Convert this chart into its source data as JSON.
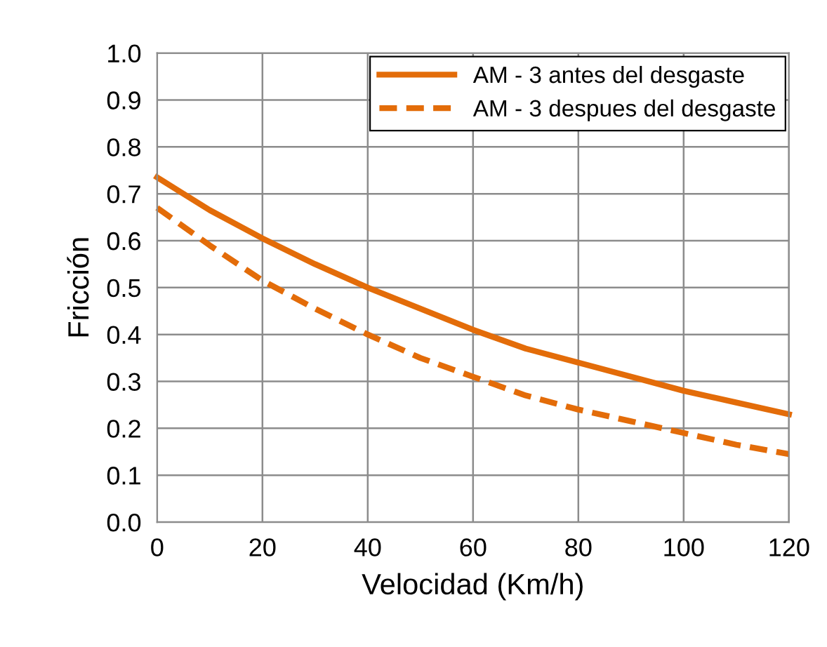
{
  "chart_data": {
    "type": "line",
    "xlabel": "Velocidad (Km/h)",
    "ylabel": "Fricción",
    "x": [
      0,
      10,
      20,
      30,
      40,
      50,
      60,
      70,
      80,
      90,
      100,
      110,
      120
    ],
    "series": [
      {
        "name": "AM - 3 antes del desgaste",
        "color": "#e36c09",
        "line_style": "solid",
        "values": [
          0.735,
          0.665,
          0.605,
          0.55,
          0.5,
          0.455,
          0.41,
          0.37,
          0.34,
          0.31,
          0.28,
          0.255,
          0.23
        ]
      },
      {
        "name": "AM - 3 despues del desgaste",
        "color": "#e36c09",
        "line_style": "dashed",
        "values": [
          0.67,
          0.59,
          0.515,
          0.455,
          0.4,
          0.35,
          0.31,
          0.27,
          0.24,
          0.215,
          0.19,
          0.165,
          0.145
        ]
      }
    ],
    "xlim": [
      0,
      120
    ],
    "xticks": [
      0,
      20,
      40,
      60,
      80,
      100,
      120
    ],
    "ylim": [
      0,
      1
    ],
    "yticks": [
      {
        "value": 0,
        "label": "0.0"
      },
      {
        "value": 0.1,
        "label": "0.1"
      },
      {
        "value": 0.2,
        "label": "0.2"
      },
      {
        "value": 0.3,
        "label": "0.3"
      },
      {
        "value": 0.4,
        "label": "0.4"
      },
      {
        "value": 0.5,
        "label": "0.5"
      },
      {
        "value": 0.6,
        "label": "0.6"
      },
      {
        "value": 0.7,
        "label": "0.7"
      },
      {
        "value": 0.8,
        "label": "0.8"
      },
      {
        "value": 0.9,
        "label": "0.9"
      },
      {
        "value": 1,
        "label": "1.0"
      }
    ],
    "grid": true,
    "legend": "top right",
    "marker": "none"
  }
}
